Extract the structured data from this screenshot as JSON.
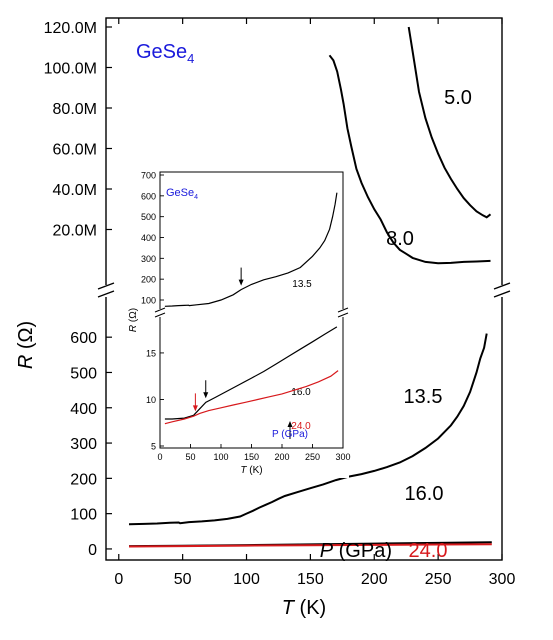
{
  "chart_data": [
    {
      "type": "line",
      "panel": "main",
      "label": "GeSe",
      "label_sub": "4",
      "xlabel": "T",
      "xlabel_unit": " (K)",
      "ylabel": "R",
      "ylabel_unit": " (Ω)",
      "xlim": [
        -10,
        300
      ],
      "x_ticks": [
        0,
        50,
        100,
        150,
        200,
        250,
        300
      ],
      "axis_break": true,
      "upper_ylim": [
        0,
        120000000
      ],
      "upper_y_ticks": [
        20000000,
        40000000,
        60000000,
        80000000,
        100000000,
        120000000
      ],
      "upper_y_tick_labels": [
        "20.0M",
        "40.0M",
        "60.0M",
        "80.0M",
        "100.0M",
        "120.0M"
      ],
      "lower_ylim": [
        -20,
        660
      ],
      "lower_y_ticks": [
        0,
        100,
        200,
        300,
        400,
        500,
        600
      ],
      "lower_y_tick_labels": [
        "0",
        "100",
        "200",
        "300",
        "400",
        "500",
        "600"
      ],
      "legend_title": "P",
      "legend_title_unit": " (GPa)",
      "series": [
        {
          "name": "5.0",
          "segment": "upper",
          "color": "#000000",
          "x": [
            227,
            230,
            235,
            240,
            245,
            250,
            255,
            260,
            265,
            270,
            275,
            280,
            285,
            288,
            291
          ],
          "y": [
            120000000,
            108000000,
            88000000,
            75000000,
            65500000,
            57500000,
            50500000,
            45000000,
            40000000,
            35500000,
            32000000,
            29000000,
            27000000,
            26000000,
            27500000
          ]
        },
        {
          "name": "8.0",
          "segment": "upper",
          "color": "#000000",
          "x": [
            165,
            168,
            171,
            174,
            176,
            179,
            182,
            186,
            190,
            195,
            200,
            205,
            210,
            215,
            220,
            225,
            230,
            240,
            250,
            260,
            270,
            280,
            291
          ],
          "y": [
            106000000,
            103500000,
            98000000,
            89000000,
            82000000,
            70000000,
            61000000,
            50000000,
            43000000,
            36000000,
            30000000,
            25000000,
            18500000,
            13500000,
            10000000,
            8000000,
            6000000,
            4000000,
            3300000,
            3500000,
            4000000,
            4200000,
            4500000
          ]
        },
        {
          "name": "13.5",
          "segment": "lower",
          "color": "#000000",
          "x": [
            8,
            20,
            30,
            40,
            47,
            48,
            55,
            65,
            75,
            85,
            95,
            100,
            105,
            110,
            115,
            120,
            125,
            130,
            140,
            150,
            160,
            170,
            180,
            190,
            200,
            210,
            220,
            230,
            240,
            250,
            260,
            265,
            270,
            275,
            280,
            283,
            286,
            288
          ],
          "y": [
            70,
            71,
            72,
            74,
            75,
            73,
            76,
            78,
            81,
            85,
            92,
            100,
            108,
            117,
            125,
            133,
            142,
            150,
            161,
            172,
            183,
            195,
            205,
            212,
            221,
            232,
            245,
            263,
            286,
            313,
            350,
            375,
            405,
            445,
            500,
            540,
            570,
            610
          ]
        },
        {
          "name": "16.0",
          "segment": "lower",
          "color": "#000000",
          "x": [
            8,
            50,
            100,
            150,
            200,
            250,
            292
          ],
          "y": [
            8,
            9,
            11,
            13,
            15,
            17,
            19
          ]
        },
        {
          "name": "24.0",
          "segment": "lower",
          "color": "#d7191c",
          "x": [
            8,
            50,
            100,
            150,
            200,
            250,
            292
          ],
          "y": [
            7,
            8,
            9.5,
            10.5,
            11.5,
            12.5,
            13.5
          ]
        }
      ]
    },
    {
      "type": "line",
      "panel": "inset",
      "label": "GeSe",
      "label_sub": "4",
      "xlabel": "T",
      "xlabel_unit": " (K)",
      "ylabel": "R",
      "ylabel_unit": " (Ω)",
      "xlim": [
        0,
        300
      ],
      "x_ticks": [
        0,
        50,
        100,
        150,
        200,
        250,
        300
      ],
      "axis_break": true,
      "upper_ylim": [
        100,
        700
      ],
      "upper_y_ticks": [
        100,
        200,
        300,
        400,
        500,
        600,
        700
      ],
      "lower_ylim": [
        5,
        18
      ],
      "lower_y_ticks": [
        5,
        10,
        15
      ],
      "legend_title": "P (GPa)",
      "arrow_marks": [
        {
          "series": "13.5",
          "x": 133
        },
        {
          "series": "16.0",
          "x": 75
        },
        {
          "series": "24.0",
          "x": 58
        }
      ],
      "series": [
        {
          "name": "13.5",
          "segment": "upper",
          "color": "#000000",
          "x": [
            8,
            20,
            30,
            40,
            47,
            48,
            60,
            80,
            100,
            120,
            133,
            150,
            170,
            190,
            210,
            230,
            250,
            262,
            270,
            278,
            283,
            287,
            290
          ],
          "y": [
            70,
            71,
            73,
            74,
            75,
            73,
            77,
            83,
            100,
            125,
            150,
            175,
            197,
            212,
            230,
            256,
            310,
            350,
            385,
            440,
            500,
            560,
            615
          ]
        },
        {
          "name": "16.0",
          "segment": "lower",
          "color": "#000000",
          "x": [
            8,
            20,
            40,
            55,
            65,
            75,
            90,
            110,
            130,
            150,
            170,
            190,
            210,
            230,
            250,
            270,
            290
          ],
          "y": [
            7.9,
            7.9,
            8.0,
            8.3,
            9.0,
            9.7,
            10.2,
            10.9,
            11.6,
            12.3,
            13.0,
            13.8,
            14.6,
            15.4,
            16.2,
            17.0,
            17.8
          ]
        },
        {
          "name": "24.0",
          "segment": "lower",
          "color": "#d7191c",
          "x": [
            8,
            20,
            40,
            55,
            65,
            80,
            100,
            120,
            140,
            160,
            180,
            200,
            220,
            240,
            260,
            280,
            292
          ],
          "y": [
            7.4,
            7.6,
            7.9,
            8.2,
            8.5,
            8.8,
            9.1,
            9.4,
            9.7,
            10.0,
            10.3,
            10.6,
            11.0,
            11.4,
            11.9,
            12.5,
            13.1
          ]
        }
      ]
    }
  ]
}
